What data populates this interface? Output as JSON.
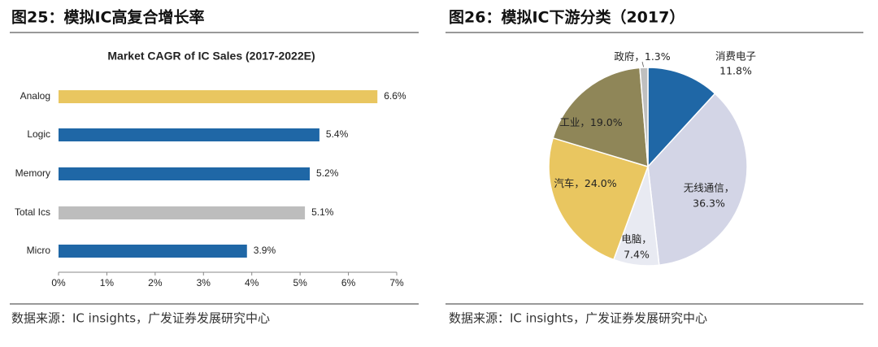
{
  "chart_data": [
    {
      "type": "bar",
      "orientation": "horizontal",
      "figure_title": "图25：模拟IC高复合增长率",
      "title": "Market CAGR of IC Sales (2017-2022E)",
      "categories": [
        "Analog",
        "Logic",
        "Memory",
        "Total Ics",
        "Micro"
      ],
      "values": [
        6.6,
        5.4,
        5.2,
        5.1,
        3.9
      ],
      "value_labels": [
        "6.6%",
        "5.4%",
        "5.2%",
        "5.1%",
        "3.9%"
      ],
      "colors": [
        "#e9c660",
        "#1f67a6",
        "#1f67a6",
        "#bdbdbd",
        "#1f67a6"
      ],
      "xlim": [
        0,
        7
      ],
      "xticks": [
        {
          "value": 0,
          "label": "0%"
        },
        {
          "value": 1,
          "label": "1%"
        },
        {
          "value": 2,
          "label": "2%"
        },
        {
          "value": 3,
          "label": "3%"
        },
        {
          "value": 4,
          "label": "4%"
        },
        {
          "value": 5,
          "label": "5%"
        },
        {
          "value": 6,
          "label": "6%"
        },
        {
          "value": 7,
          "label": "7%"
        }
      ],
      "source": "数据来源：IC insights，广发证券发展研究中心"
    },
    {
      "type": "pie",
      "figure_title": "图26：模拟IC下游分类（2017）",
      "categories": [
        "消费电子",
        "无线通信，",
        "电脑，",
        "汽车，",
        "工业，",
        "政府，"
      ],
      "values": [
        11.8,
        36.3,
        7.4,
        24,
        19,
        1.3
      ],
      "value_labels": [
        "11.8%",
        "36.3%",
        "7.4%",
        "24.0%",
        "19.0%",
        "1.3%"
      ],
      "colors": [
        "#1f67a6",
        "#d3d5e6",
        "#e8eaf2",
        "#e9c660",
        "#8f8658",
        "#bfbfbf"
      ],
      "source": "数据来源：IC insights，广发证券发展研究中心"
    }
  ]
}
